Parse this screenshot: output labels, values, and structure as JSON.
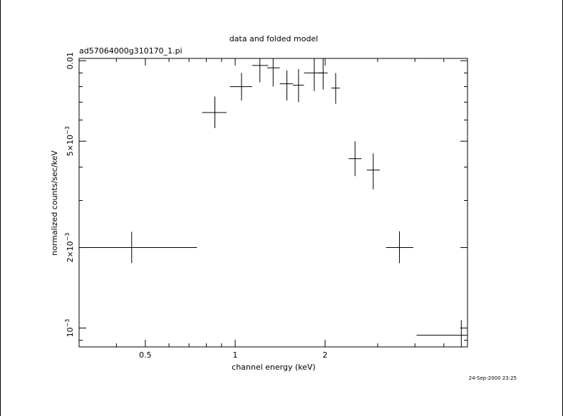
{
  "chart_data": {
    "type": "scatter",
    "title": "data and folded model",
    "subtitle": "ad57064000g310170_1.pi",
    "xlabel": "channel energy (keV)",
    "ylabel": "normalized counts/sec/keV",
    "x_scale": "log",
    "y_scale": "log",
    "xlim": [
      0.3,
      6.0
    ],
    "ylim": [
      0.00085,
      0.0102
    ],
    "x_ticks": [
      {
        "value": 0.5,
        "label": "0.5"
      },
      {
        "value": 1,
        "label": "1"
      },
      {
        "value": 2,
        "label": "2"
      }
    ],
    "y_ticks": [
      {
        "value": 0.001,
        "base": "10",
        "exp": "−3",
        "label": "10^-3"
      },
      {
        "value": 0.002,
        "base": "2×10",
        "exp": "−3",
        "label": "2×10^-3"
      },
      {
        "value": 0.005,
        "base": "5×10",
        "exp": "−3",
        "label": "5×10^-3"
      },
      {
        "value": 0.01,
        "base": "0.01",
        "exp": "",
        "label": "0.01"
      }
    ],
    "series": [
      {
        "points": [
          {
            "x": 0.45,
            "xlo": 0.3,
            "xhi": 0.745,
            "y": 0.002,
            "ylo": 0.00175,
            "yhi": 0.00229
          },
          {
            "x": 0.855,
            "xlo": 0.775,
            "xhi": 0.935,
            "y": 0.0064,
            "ylo": 0.0056,
            "yhi": 0.00735
          },
          {
            "x": 1.05,
            "xlo": 0.96,
            "xhi": 1.14,
            "y": 0.008,
            "ylo": 0.0071,
            "yhi": 0.009
          },
          {
            "x": 1.21,
            "xlo": 1.14,
            "xhi": 1.29,
            "y": 0.0096,
            "ylo": 0.0083,
            "yhi": 0.0103
          },
          {
            "x": 1.34,
            "xlo": 1.28,
            "xhi": 1.41,
            "y": 0.0094,
            "ylo": 0.008,
            "yhi": 0.0103
          },
          {
            "x": 1.49,
            "xlo": 1.41,
            "xhi": 1.56,
            "y": 0.0082,
            "ylo": 0.0071,
            "yhi": 0.0092
          },
          {
            "x": 1.63,
            "xlo": 1.56,
            "xhi": 1.7,
            "y": 0.0081,
            "ylo": 0.007,
            "yhi": 0.0093
          },
          {
            "x": 1.84,
            "xlo": 1.7,
            "xhi": 1.97,
            "y": 0.009,
            "ylo": 0.0077,
            "yhi": 0.0103
          },
          {
            "x": 1.97,
            "xlo": 1.9,
            "xhi": 2.04,
            "y": 0.009,
            "ylo": 0.0078,
            "yhi": 0.0103
          },
          {
            "x": 2.17,
            "xlo": 2.1,
            "xhi": 2.24,
            "y": 0.0079,
            "ylo": 0.0069,
            "yhi": 0.009
          },
          {
            "x": 2.52,
            "xlo": 2.4,
            "xhi": 2.65,
            "y": 0.0043,
            "ylo": 0.0037,
            "yhi": 0.005
          },
          {
            "x": 2.9,
            "xlo": 2.76,
            "xhi": 3.05,
            "y": 0.0039,
            "ylo": 0.0033,
            "yhi": 0.0045
          },
          {
            "x": 3.55,
            "xlo": 3.2,
            "xhi": 3.95,
            "y": 0.002,
            "ylo": 0.00175,
            "yhi": 0.0023
          },
          {
            "x": 5.72,
            "xlo": 4.05,
            "xhi": 6.0,
            "y": 0.00094,
            "ylo": 0.00085,
            "yhi": 0.00107
          }
        ]
      }
    ],
    "grid": false
  },
  "timestamp": "24-Sep-2000 23:25"
}
